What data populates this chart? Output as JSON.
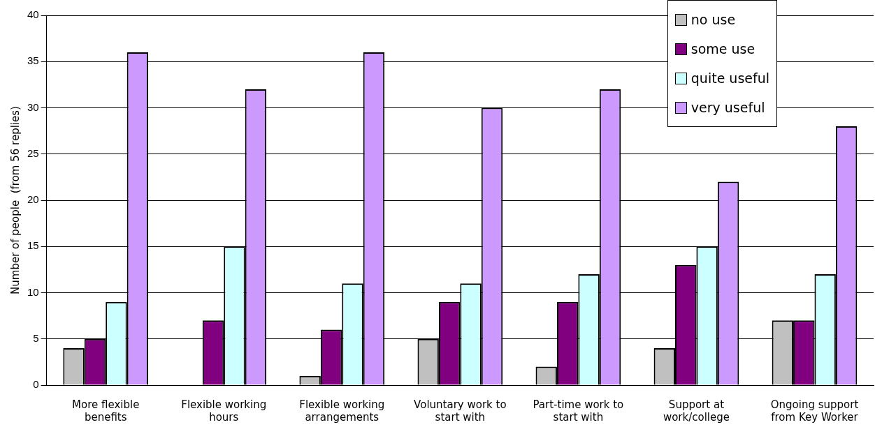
{
  "chart_data": {
    "type": "bar",
    "ylabel": "Number of people  (from 56 replies)",
    "categories": [
      "More flexible benefits",
      "Flexible working hours",
      "Flexible working arrangements",
      "Voluntary work to start with",
      "Part-time work to start with",
      "Support at work/college",
      "Ongoing support from Key Worker"
    ],
    "series": [
      {
        "name": "no use",
        "color": "#c0c0c0",
        "values": [
          4,
          0,
          1,
          5,
          2,
          4,
          7
        ]
      },
      {
        "name": "some use",
        "color": "#800080",
        "values": [
          5,
          7,
          6,
          9,
          9,
          13,
          7
        ]
      },
      {
        "name": "quite useful",
        "color": "#ccffff",
        "values": [
          9,
          15,
          11,
          11,
          12,
          15,
          12
        ]
      },
      {
        "name": "very useful",
        "color": "#cc99ff",
        "values": [
          36,
          32,
          36,
          30,
          32,
          22,
          28
        ]
      }
    ],
    "ylim": [
      0,
      40
    ],
    "yticks": [
      0,
      5,
      10,
      15,
      20,
      25,
      30,
      35,
      40
    ],
    "grid": "y",
    "legend": "top right"
  }
}
